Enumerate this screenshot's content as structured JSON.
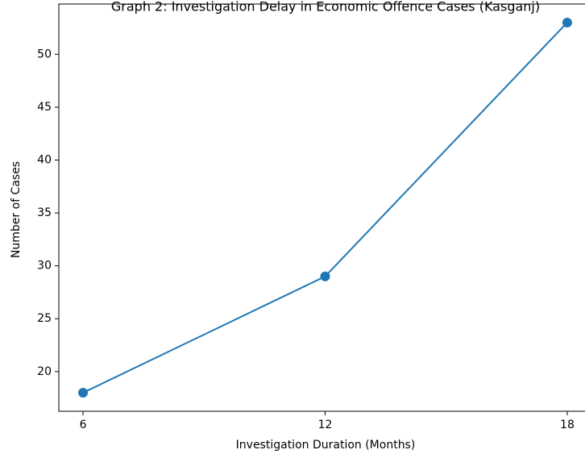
{
  "chart_data": {
    "type": "line",
    "title": "Graph 2: Investigation Delay in Economic Offence Cases (Kasganj)",
    "xlabel": "Investigation Duration (Months)",
    "ylabel": "Number of Cases",
    "x": [
      6,
      12,
      18
    ],
    "xticks": [
      6,
      12,
      18
    ],
    "yticks": [
      20,
      25,
      30,
      35,
      40,
      45,
      50
    ],
    "xlim": [
      5.4,
      18.6
    ],
    "ylim": [
      16.25,
      54.75
    ],
    "grid": false,
    "series": [
      {
        "values": [
          18,
          29,
          53
        ],
        "color": "#1f77b4",
        "marker": "circle"
      }
    ]
  }
}
